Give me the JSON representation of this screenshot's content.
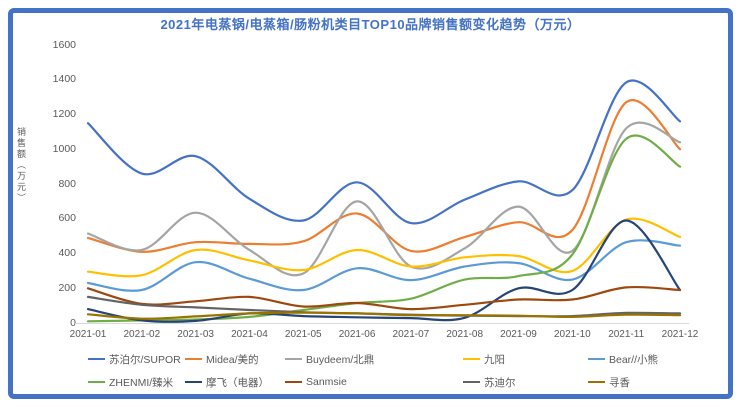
{
  "chart_data": {
    "type": "line",
    "title": "2021年电蒸锅/电蒸箱/肠粉机类目TOP10品牌销售额变化趋势（万元）",
    "ylabel": "销售额（万元）",
    "xlabel": "",
    "ylim": [
      0,
      1600
    ],
    "ytick_step": 200,
    "grid": false,
    "smooth_lines": true,
    "legend_position": "bottom",
    "categories": [
      "2021-01",
      "2021-02",
      "2021-03",
      "2021-04",
      "2021-05",
      "2021-06",
      "2021-07",
      "2021-08",
      "2021-09",
      "2021-10",
      "2021-11",
      "2021-12"
    ],
    "series": [
      {
        "id": "supor",
        "name": "苏泊尔/SUPOR",
        "color": "#4472C4",
        "values": [
          1150,
          860,
          960,
          715,
          590,
          810,
          575,
          710,
          815,
          765,
          1385,
          1160
        ]
      },
      {
        "id": "midea",
        "name": "Midea/美的",
        "color": "#ED7D31",
        "values": [
          490,
          410,
          465,
          455,
          470,
          630,
          415,
          495,
          580,
          535,
          1270,
          1000
        ]
      },
      {
        "id": "buydeem",
        "name": "Buydeem/北鼎",
        "color": "#A5A5A5",
        "values": [
          515,
          420,
          635,
          420,
          285,
          700,
          325,
          430,
          670,
          415,
          1120,
          1040
        ]
      },
      {
        "id": "joyoung",
        "name": "九阳",
        "color": "#FFC000",
        "values": [
          295,
          275,
          420,
          360,
          305,
          420,
          325,
          378,
          385,
          300,
          595,
          495
        ]
      },
      {
        "id": "bear",
        "name": "Bear//小熊",
        "color": "#5B9BD5",
        "values": [
          230,
          190,
          350,
          255,
          190,
          315,
          247,
          325,
          345,
          250,
          465,
          445
        ]
      },
      {
        "id": "zhenmi",
        "name": "ZHENMI/臻米",
        "color": "#70AD47",
        "values": [
          10,
          15,
          20,
          35,
          75,
          115,
          140,
          250,
          270,
          395,
          1060,
          900
        ]
      },
      {
        "id": "mofei",
        "name": "摩飞（电器）",
        "color": "#264478",
        "values": [
          80,
          15,
          12,
          55,
          40,
          33,
          28,
          30,
          200,
          190,
          590,
          190
        ]
      },
      {
        "id": "sanmsie",
        "name": "Sanmsie",
        "color": "#9E480E",
        "values": [
          200,
          110,
          125,
          150,
          95,
          115,
          80,
          105,
          135,
          135,
          205,
          190
        ]
      },
      {
        "id": "sudier",
        "name": "苏迪尔",
        "color": "#636363",
        "values": [
          150,
          105,
          90,
          75,
          62,
          55,
          48,
          42,
          40,
          40,
          58,
          55
        ]
      },
      {
        "id": "xunxiang",
        "name": "寻香",
        "color": "#997300",
        "values": [
          50,
          25,
          38,
          55,
          60,
          55,
          45,
          45,
          42,
          35,
          48,
          45
        ]
      }
    ],
    "frame_color": "#4472C4",
    "title_color": "#4472C4",
    "axis_text_color": "#595959",
    "axis_line_color": "#D9D9D9"
  }
}
